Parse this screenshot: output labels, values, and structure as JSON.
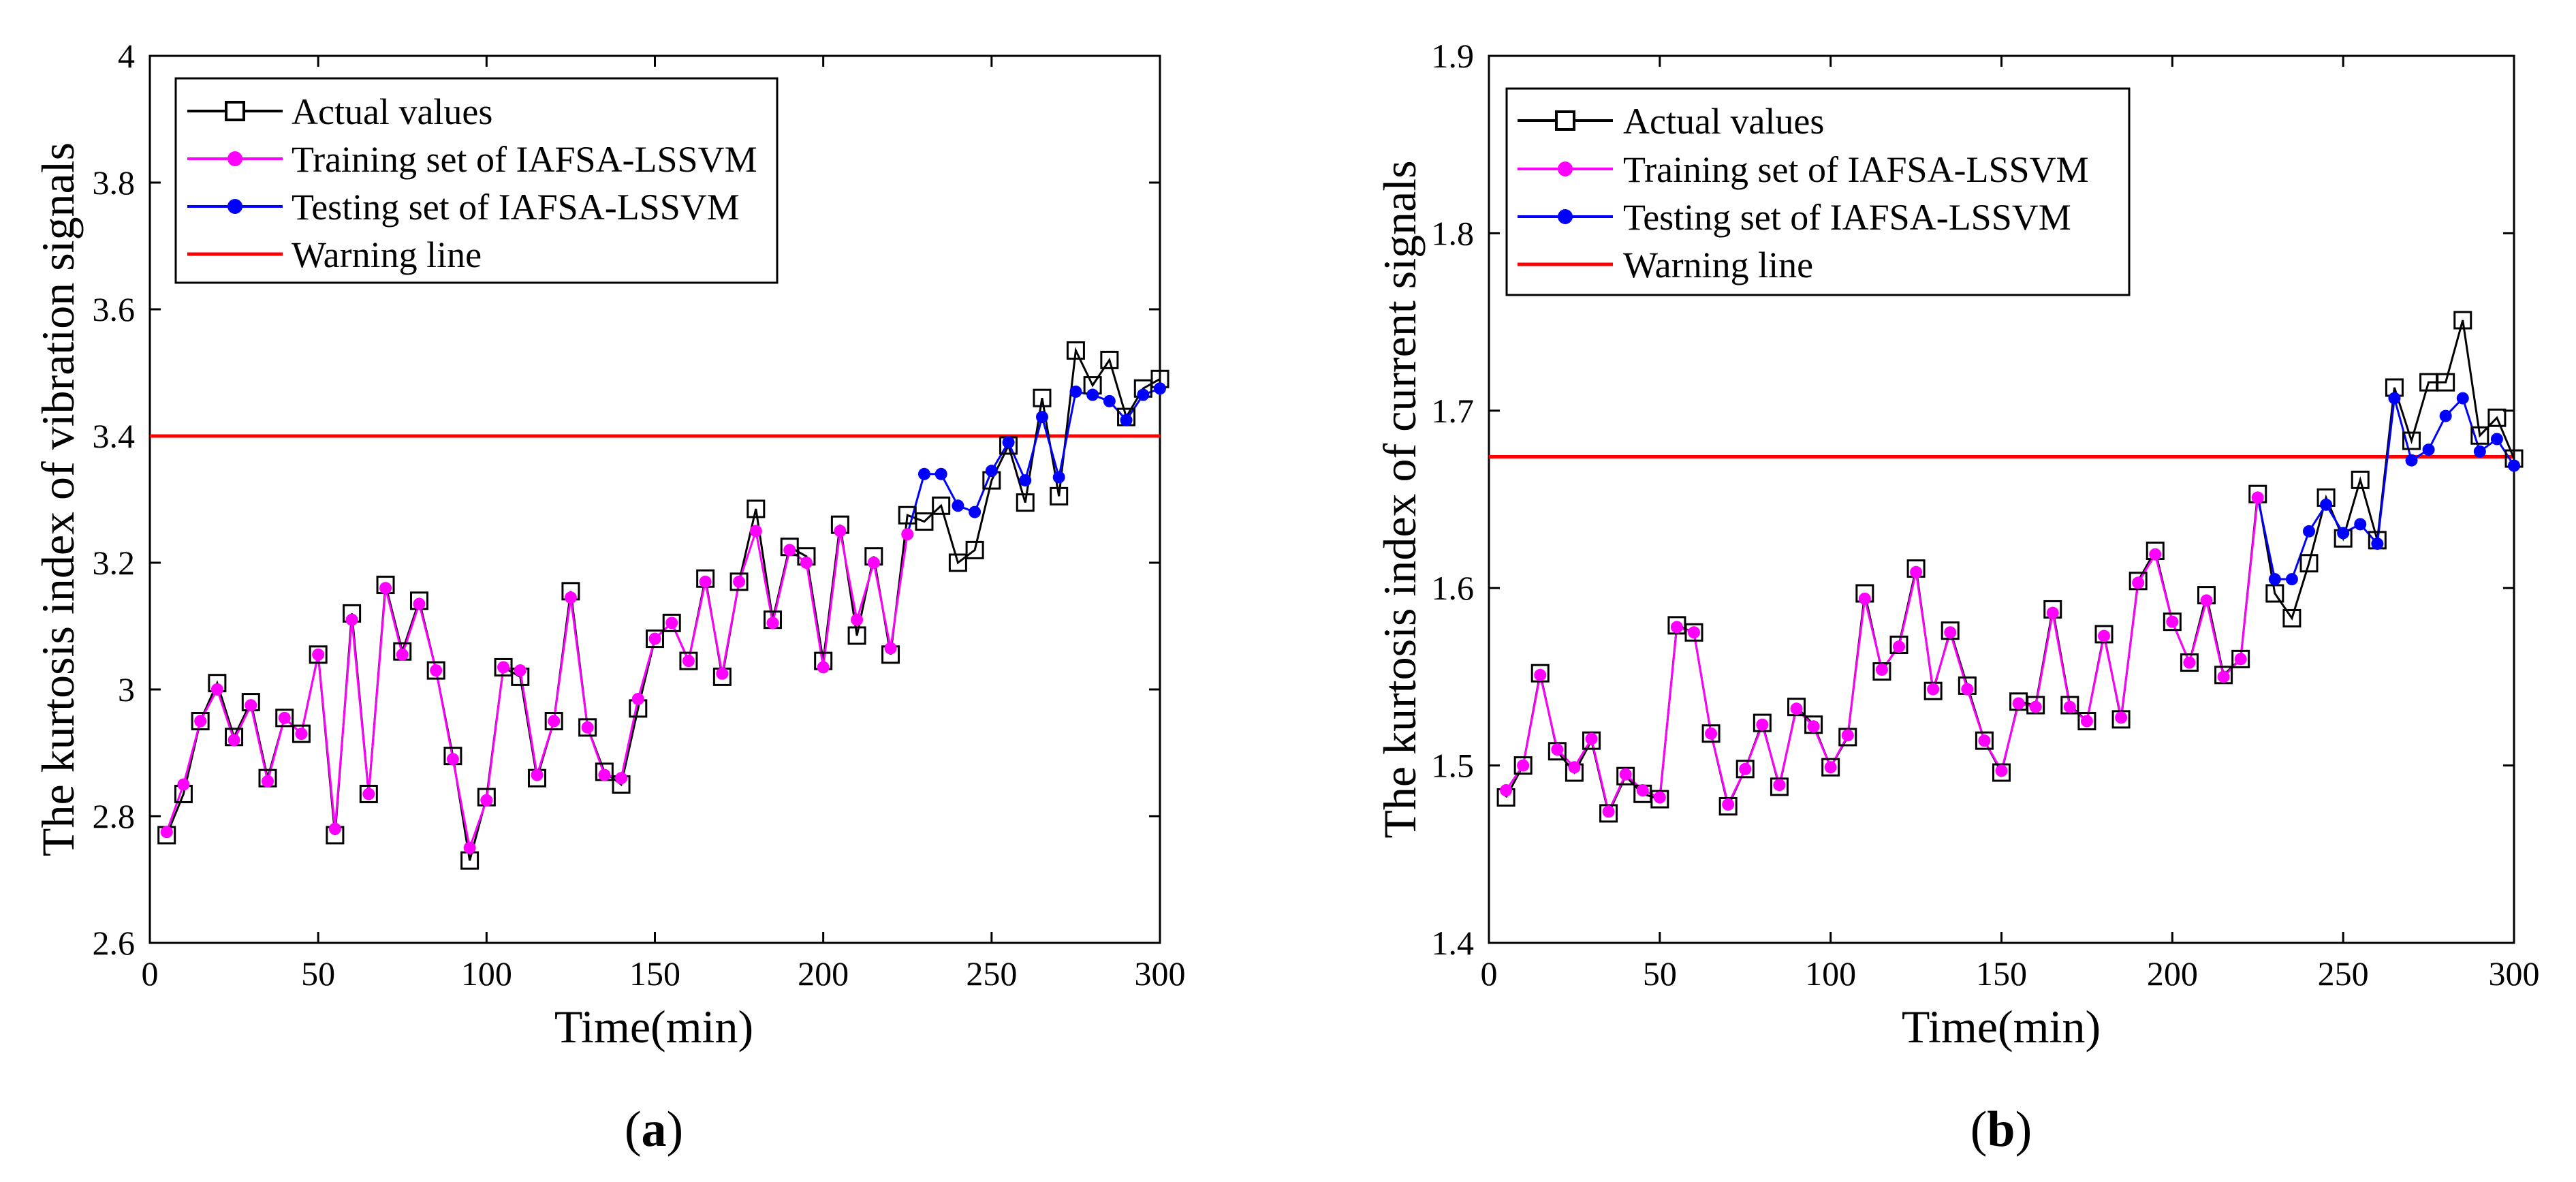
{
  "colors": {
    "actual": "#000000",
    "training": "#ff00ff",
    "testing": "#0000ff",
    "warning": "#ff0000"
  },
  "legend": {
    "actual": "Actual values",
    "training": "Training set of IAFSA-LSSVM",
    "testing": "Testing set of IAFSA-LSSVM",
    "warning": "Warning line"
  },
  "chart_data": [
    {
      "type": "line",
      "panel_label": "a",
      "xlabel": "Time(min)",
      "ylabel": "The kurtosis index of vibration signals",
      "xlim": [
        0,
        300
      ],
      "ylim": [
        2.6,
        4.0
      ],
      "xticks": [
        0,
        50,
        100,
        150,
        200,
        250,
        300
      ],
      "yticks": [
        2.6,
        2.8,
        3.0,
        3.2,
        3.4,
        3.6,
        3.8,
        4.0
      ],
      "ytick_labels": [
        "2.6",
        "2.8",
        "3",
        "3.2",
        "3.4",
        "3.6",
        "3.8",
        "4"
      ],
      "warning_value": 3.4,
      "x": [
        5,
        10,
        15,
        20,
        25,
        30,
        35,
        40,
        45,
        50,
        55,
        60,
        65,
        70,
        75,
        80,
        85,
        90,
        95,
        100,
        105,
        110,
        115,
        120,
        125,
        130,
        135,
        140,
        145,
        150,
        155,
        160,
        165,
        170,
        175,
        180,
        185,
        190,
        195,
        200,
        205,
        210,
        215,
        220,
        225,
        230,
        235,
        240,
        245,
        250,
        255,
        260,
        265,
        270,
        275,
        280,
        285,
        290,
        295,
        300
      ],
      "actual": [
        2.77,
        2.835,
        2.95,
        3.01,
        2.925,
        2.98,
        2.86,
        2.955,
        2.93,
        3.055,
        2.77,
        3.12,
        2.835,
        3.165,
        3.06,
        3.14,
        3.03,
        2.895,
        2.73,
        2.83,
        3.035,
        3.02,
        2.86,
        2.95,
        3.155,
        2.94,
        2.87,
        2.85,
        2.97,
        3.08,
        3.105,
        3.045,
        3.175,
        3.02,
        3.17,
        3.285,
        3.11,
        3.225,
        3.21,
        3.045,
        3.26,
        3.085,
        3.21,
        3.055,
        3.275,
        3.265,
        3.29,
        3.2,
        3.22,
        3.33,
        3.385,
        3.295,
        3.46,
        3.305,
        3.535,
        3.48,
        3.52,
        3.43,
        3.475,
        3.49
      ],
      "train_end": 45,
      "predicted": [
        2.775,
        2.85,
        2.95,
        3.0,
        2.92,
        2.975,
        2.855,
        2.955,
        2.93,
        3.055,
        2.78,
        3.11,
        2.835,
        3.16,
        3.055,
        3.135,
        3.03,
        2.89,
        2.75,
        2.825,
        3.035,
        3.03,
        2.865,
        2.95,
        3.145,
        2.94,
        2.865,
        2.86,
        2.985,
        3.08,
        3.105,
        3.045,
        3.17,
        3.025,
        3.17,
        3.25,
        3.105,
        3.22,
        3.2,
        3.035,
        3.25,
        3.11,
        3.2,
        3.065,
        3.245,
        3.34,
        3.34,
        3.29,
        3.28,
        3.345,
        3.39,
        3.33,
        3.43,
        3.335,
        3.47,
        3.465,
        3.455,
        3.425,
        3.465,
        3.475
      ]
    },
    {
      "type": "line",
      "panel_label": "b",
      "xlabel": "Time(min)",
      "ylabel": "The kurtosis index of current signals",
      "xlim": [
        0,
        300
      ],
      "ylim": [
        1.4,
        1.9
      ],
      "xticks": [
        0,
        50,
        100,
        150,
        200,
        250,
        300
      ],
      "yticks": [
        1.4,
        1.5,
        1.6,
        1.7,
        1.8,
        1.9
      ],
      "ytick_labels": [
        "1.4",
        "1.5",
        "1.6",
        "1.7",
        "1.8",
        "1.9"
      ],
      "warning_value": 1.674,
      "x": [
        5,
        10,
        15,
        20,
        25,
        30,
        35,
        40,
        45,
        50,
        55,
        60,
        65,
        70,
        75,
        80,
        85,
        90,
        95,
        100,
        105,
        110,
        115,
        120,
        125,
        130,
        135,
        140,
        145,
        150,
        155,
        160,
        165,
        170,
        175,
        180,
        185,
        190,
        195,
        200,
        205,
        210,
        215,
        220,
        225,
        230,
        235,
        240,
        245,
        250,
        255,
        260,
        265,
        270,
        275,
        280,
        285,
        290,
        295,
        300
      ],
      "actual": [
        1.482,
        1.5,
        1.552,
        1.508,
        1.496,
        1.514,
        1.473,
        1.494,
        1.484,
        1.481,
        1.579,
        1.575,
        1.518,
        1.477,
        1.498,
        1.524,
        1.488,
        1.533,
        1.523,
        1.499,
        1.516,
        1.597,
        1.553,
        1.568,
        1.611,
        1.542,
        1.576,
        1.545,
        1.514,
        1.496,
        1.536,
        1.534,
        1.588,
        1.534,
        1.525,
        1.574,
        1.526,
        1.604,
        1.621,
        1.581,
        1.558,
        1.596,
        1.551,
        1.56,
        1.653,
        1.597,
        1.583,
        1.614,
        1.651,
        1.628,
        1.661,
        1.627,
        1.713,
        1.683,
        1.716,
        1.716,
        1.751,
        1.686,
        1.696,
        1.673
      ],
      "train_end": 45,
      "predicted": [
        1.486,
        1.5,
        1.551,
        1.509,
        1.499,
        1.515,
        1.474,
        1.495,
        1.486,
        1.482,
        1.578,
        1.575,
        1.518,
        1.478,
        1.498,
        1.523,
        1.489,
        1.532,
        1.522,
        1.499,
        1.517,
        1.594,
        1.554,
        1.567,
        1.609,
        1.543,
        1.575,
        1.543,
        1.514,
        1.497,
        1.535,
        1.533,
        1.586,
        1.533,
        1.525,
        1.573,
        1.527,
        1.603,
        1.619,
        1.581,
        1.558,
        1.593,
        1.55,
        1.56,
        1.651,
        1.605,
        1.605,
        1.632,
        1.647,
        1.631,
        1.636,
        1.625,
        1.707,
        1.672,
        1.678,
        1.697,
        1.707,
        1.677,
        1.684,
        1.669
      ]
    }
  ]
}
